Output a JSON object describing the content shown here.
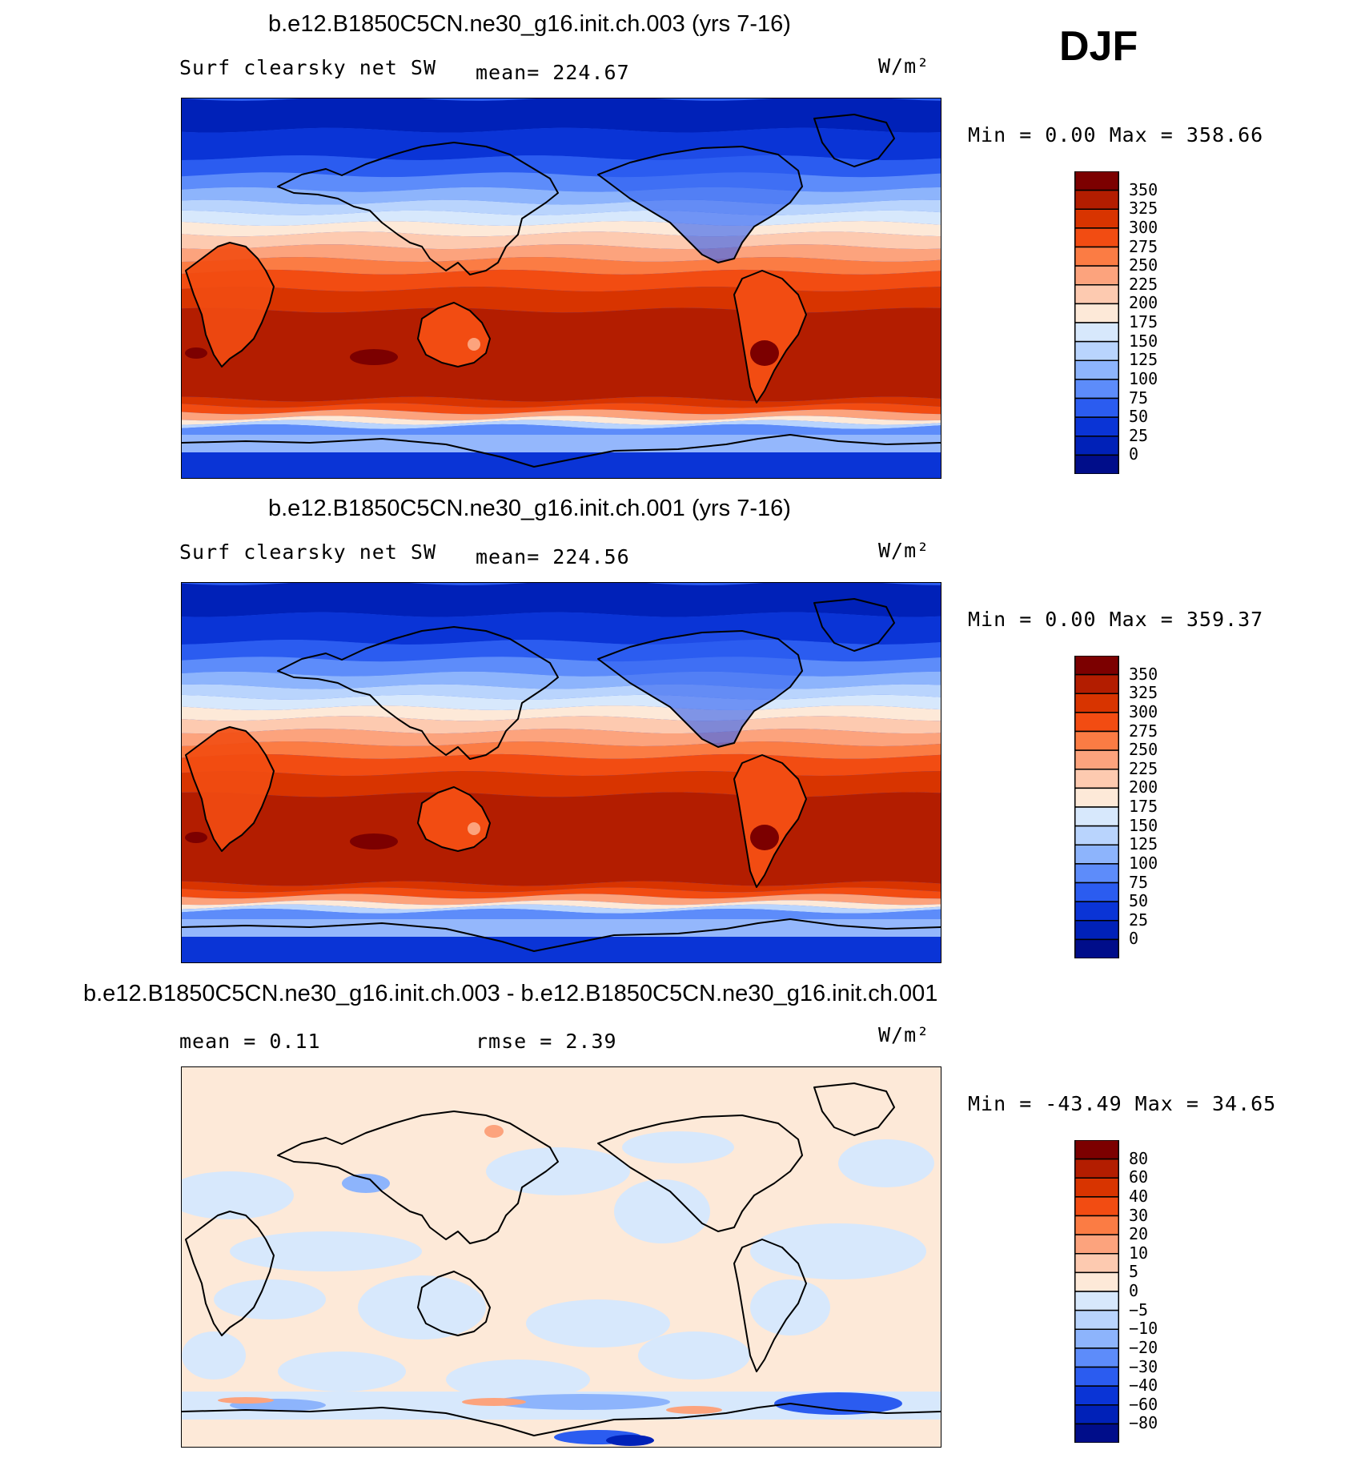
{
  "season": "DJF",
  "panels": [
    {
      "id": "run003",
      "title": "b.e12.B1850C5CN.ne30_g16.init.ch.003 (yrs 7-16)",
      "left_label": "Surf clearsky net SW",
      "center_label": "mean= 224.67",
      "units_label": "W/m²",
      "minmax": "Min =     0.00 Max =  358.66",
      "scale_kind": "abs",
      "variant": 0
    },
    {
      "id": "run001",
      "title": "b.e12.B1850C5CN.ne30_g16.init.ch.001 (yrs 7-16)",
      "left_label": "Surf clearsky net SW",
      "center_label": "mean= 224.56",
      "units_label": "W/m²",
      "minmax": "Min =     0.00 Max =  359.37",
      "scale_kind": "abs",
      "variant": 1
    },
    {
      "id": "diff",
      "title": "b.e12.B1850C5CN.ne30_g16.init.ch.003 - b.e12.B1850C5CN.ne30_g16.init.ch.001",
      "left_label": "mean =    0.11",
      "center_label": "rmse =    2.39",
      "units_label": "W/m²",
      "minmax": "Min = -43.49 Max =   34.65",
      "scale_kind": "diff",
      "variant": 2
    }
  ],
  "colorbars": {
    "abs": {
      "labels": [
        "350",
        "325",
        "300",
        "275",
        "250",
        "225",
        "200",
        "175",
        "150",
        "125",
        "100",
        "75",
        "50",
        "25",
        "0"
      ],
      "colors": [
        "#7c0000",
        "#b31d00",
        "#d83400",
        "#f24c12",
        "#fb7c44",
        "#fca37d",
        "#fdcab0",
        "#fde9d8",
        "#d7e8fc",
        "#b9d4fd",
        "#8db4fc",
        "#5d8cfa",
        "#2b5cf0",
        "#0a34d6",
        "#0021b8",
        "#000d8a"
      ]
    },
    "diff": {
      "labels": [
        "80",
        "60",
        "40",
        "30",
        "20",
        "10",
        "5",
        "0",
        "−5",
        "−10",
        "−20",
        "−30",
        "−40",
        "−60",
        "−80"
      ],
      "colors": [
        "#7c0000",
        "#b31d00",
        "#d83400",
        "#f24c12",
        "#fb7c44",
        "#fca37d",
        "#fdcab0",
        "#fde9d8",
        "#d7e8fc",
        "#b9d4fd",
        "#8db4fc",
        "#5d8cfa",
        "#2b5cf0",
        "#0a34d6",
        "#0021b8",
        "#000d8a"
      ]
    }
  },
  "chart_data": {
    "type": "heatmap",
    "title": "DJF",
    "variable": "Surf clearsky net SW",
    "units": "W/m²",
    "panels": [
      {
        "name": "b.e12.B1850C5CN.ne30_g16.init.ch.003 (yrs 7-16)",
        "mean": 224.67,
        "min": 0.0,
        "max": 358.66,
        "contour_levels": [
          0,
          25,
          50,
          75,
          100,
          125,
          150,
          175,
          200,
          225,
          250,
          275,
          300,
          325,
          350
        ]
      },
      {
        "name": "b.e12.B1850C5CN.ne30_g16.init.ch.001 (yrs 7-16)",
        "mean": 224.56,
        "min": 0.0,
        "max": 359.37,
        "contour_levels": [
          0,
          25,
          50,
          75,
          100,
          125,
          150,
          175,
          200,
          225,
          250,
          275,
          300,
          325,
          350
        ]
      },
      {
        "name": "b.e12.B1850C5CN.ne30_g16.init.ch.003 - b.e12.B1850C5CN.ne30_g16.init.ch.001",
        "mean": 0.11,
        "rmse": 2.39,
        "min": -43.49,
        "max": 34.65,
        "contour_levels": [
          -80,
          -60,
          -40,
          -30,
          -20,
          -10,
          -5,
          0,
          5,
          10,
          20,
          30,
          40,
          60,
          80
        ]
      }
    ]
  }
}
